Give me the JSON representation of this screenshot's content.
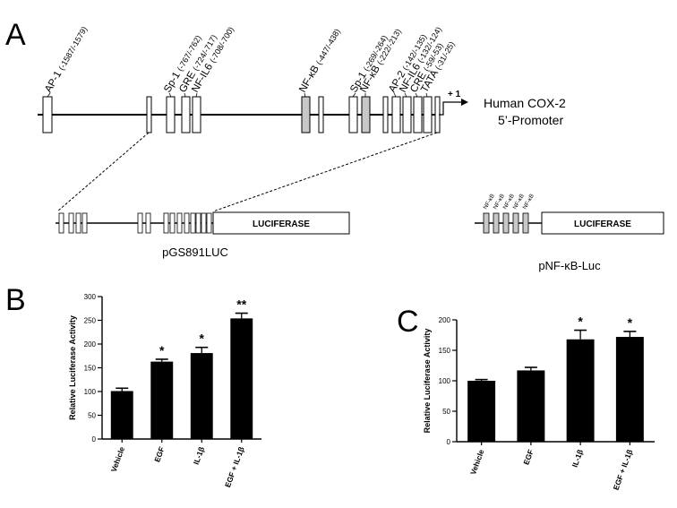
{
  "panels": {
    "a": "A",
    "b": "B",
    "c": "C"
  },
  "promoter": {
    "title_line1": "Human COX-2",
    "title_line2": "5’-Promoter",
    "start_label": "+ 1",
    "sites": [
      {
        "label": "AP-1",
        "range": "(-1587/-1579)"
      },
      {
        "label": "Sp-1",
        "range": "(-767/-762)"
      },
      {
        "label": "GRE",
        "range": "(-724/-717)"
      },
      {
        "label": "NF-IL6",
        "range": "(-708/-700)"
      },
      {
        "label": "NF-κB",
        "range": "(-447/-438)"
      },
      {
        "label": "Sp-1",
        "range": "(-269/-264)"
      },
      {
        "label": "NF-κB",
        "range": "(-222/-213)"
      },
      {
        "label": "AP-2",
        "range": "(-142/-135)"
      },
      {
        "label": "NF-IL6",
        "range": "(-132/-124)"
      },
      {
        "label": "CRE",
        "range": "(-59/-53)"
      },
      {
        "label": "TATA",
        "range": "(-31/-25)"
      }
    ]
  },
  "constructs": {
    "left": {
      "box": "LUCIFERASE",
      "name": "pGS891LUC"
    },
    "right": {
      "box": "LUCIFERASE",
      "name": "pNF-κB-Luc",
      "site_labels": [
        "NF-κB",
        "NF-κB",
        "NF-κB",
        "NF-κB",
        "NF-κB"
      ]
    }
  },
  "chart_data": [
    {
      "panel": "B",
      "type": "bar",
      "ylabel": "Relative Luciferase Activity",
      "ylim": [
        0,
        300
      ],
      "yticks": [
        0,
        50,
        100,
        150,
        200,
        250,
        300
      ],
      "categories": [
        "Vehicle",
        "EGF",
        "IL-1β",
        "EGF + IL-1β"
      ],
      "values": [
        101,
        163,
        181,
        254
      ],
      "errors": [
        6,
        5,
        12,
        11
      ],
      "significance": [
        "",
        "*",
        "*",
        "**"
      ],
      "color": "#000000"
    },
    {
      "panel": "C",
      "type": "bar",
      "ylabel": "Relative Luciferase Activity",
      "ylim": [
        0,
        200
      ],
      "yticks": [
        0,
        50,
        100,
        150,
        200
      ],
      "categories": [
        "Vehicle",
        "EGF",
        "IL-1β",
        "EGF + IL-1β"
      ],
      "values": [
        100,
        117,
        168,
        172
      ],
      "errors": [
        2,
        5,
        15,
        9
      ],
      "significance": [
        "",
        "",
        "*",
        "*"
      ],
      "color": "#000000"
    }
  ]
}
